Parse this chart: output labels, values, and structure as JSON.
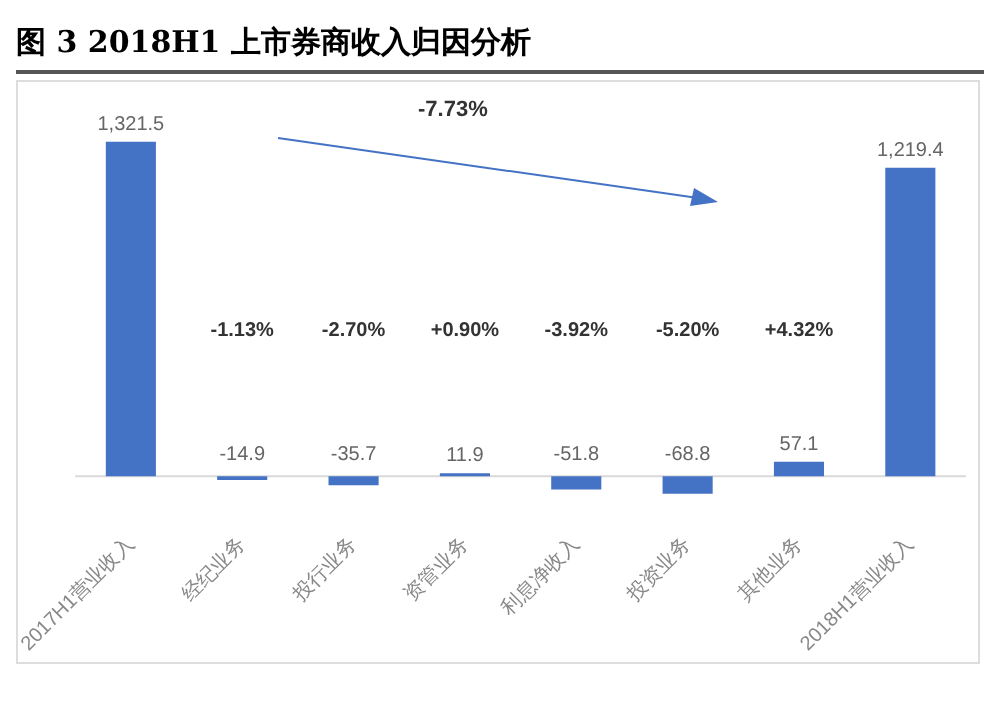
{
  "chart_data": {
    "type": "bar",
    "title": "图 3 2018H1 上市券商收入归因分析",
    "categories": [
      "2017H1营业收入",
      "经纪业务",
      "投行业务",
      "资管业务",
      "利息净收入",
      "投资业务",
      "其他业务",
      "2018H1营业收入"
    ],
    "values": [
      1321.5,
      -14.9,
      -35.7,
      11.9,
      -51.8,
      -68.8,
      57.1,
      1219.4
    ],
    "value_labels": [
      "1,321.5",
      "-14.9",
      "-35.7",
      "11.9",
      "-51.8",
      "-68.8",
      "57.1",
      "1,219.4"
    ],
    "color": "#4472c4",
    "annotations": [
      "-7.73%",
      "-1.13%",
      "-2.70%",
      "+0.90%",
      "-3.92%",
      "-5.20%",
      "+4.32%"
    ],
    "grid": false,
    "legend": false
  }
}
